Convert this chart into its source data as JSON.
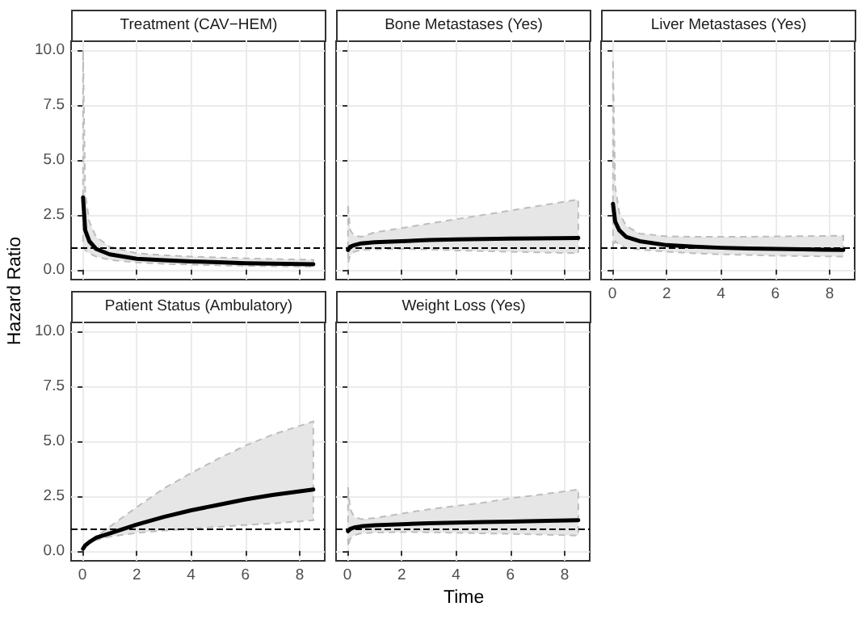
{
  "chart_data": [
    {
      "type": "line",
      "title": "Treatment (CAV−HEM)",
      "ylabel": "Hazard Ratio",
      "x": [
        0.02,
        0.1,
        0.25,
        0.5,
        1,
        2,
        3,
        4,
        5,
        6,
        7,
        8.5
      ],
      "series": [
        {
          "color": "#000000",
          "values": [
            3.3,
            1.8,
            1.3,
            0.95,
            0.7,
            0.5,
            0.43,
            0.38,
            0.34,
            0.3,
            0.28,
            0.25
          ],
          "lower": [
            1.1,
            0.9,
            0.75,
            0.6,
            0.45,
            0.33,
            0.27,
            0.23,
            0.2,
            0.18,
            0.16,
            0.14
          ],
          "upper": [
            10,
            3.5,
            2.2,
            1.5,
            1.05,
            0.75,
            0.66,
            0.6,
            0.56,
            0.52,
            0.49,
            0.45
          ]
        }
      ],
      "xlim": [
        -0.42,
        8.92
      ],
      "ylim": [
        -0.45,
        10.45
      ],
      "xticks": [
        0,
        2,
        4,
        6,
        8
      ],
      "yticks": [
        {
          "value": 0,
          "label": "0.0"
        },
        {
          "value": 2.5,
          "label": "2.5"
        },
        {
          "value": 5,
          "label": "5.0"
        },
        {
          "value": 7.5,
          "label": "7.5"
        },
        {
          "value": 10,
          "label": "10.0"
        }
      ],
      "ref_lines": [
        {
          "axis": "y",
          "value": 1,
          "color": "#000000",
          "line_style": "dashed"
        }
      ],
      "grid": true,
      "tick_labels": "y"
    },
    {
      "type": "line",
      "title": "Bone Metastases (Yes)",
      "x": [
        0.02,
        0.1,
        0.25,
        0.5,
        1,
        2,
        3,
        4,
        5,
        6,
        7,
        8.5
      ],
      "series": [
        {
          "color": "#000000",
          "values": [
            0.9,
            1.05,
            1.12,
            1.2,
            1.25,
            1.3,
            1.35,
            1.38,
            1.4,
            1.42,
            1.43,
            1.45
          ],
          "lower": [
            0.3,
            0.65,
            0.82,
            0.9,
            0.93,
            0.95,
            0.92,
            0.88,
            0.85,
            0.82,
            0.79,
            0.75
          ],
          "upper": [
            2.9,
            1.8,
            1.55,
            1.5,
            1.7,
            1.9,
            2.1,
            2.3,
            2.5,
            2.7,
            2.9,
            3.2
          ]
        }
      ],
      "xlim": [
        -0.42,
        8.92
      ],
      "ylim": [
        -0.45,
        10.45
      ],
      "xticks": [
        0,
        2,
        4,
        6,
        8
      ],
      "yticks": [
        0,
        2.5,
        5,
        7.5,
        10
      ],
      "ref_lines": [
        {
          "axis": "y",
          "value": 1,
          "color": "#000000",
          "line_style": "dashed"
        }
      ],
      "grid": true,
      "tick_labels": false
    },
    {
      "type": "line",
      "title": "Liver Metastases (Yes)",
      "x": [
        0.02,
        0.1,
        0.25,
        0.5,
        1,
        2,
        3,
        4,
        5,
        6,
        7,
        8.5
      ],
      "series": [
        {
          "color": "#000000",
          "values": [
            3.0,
            2.2,
            1.8,
            1.5,
            1.3,
            1.12,
            1.05,
            1.0,
            0.97,
            0.95,
            0.93,
            0.9
          ],
          "lower": [
            1.0,
            1.3,
            1.15,
            1.0,
            0.92,
            0.82,
            0.75,
            0.7,
            0.67,
            0.64,
            0.62,
            0.6
          ],
          "upper": [
            9.5,
            3.8,
            2.6,
            2.0,
            1.65,
            1.52,
            1.5,
            1.5,
            1.5,
            1.52,
            1.53,
            1.55
          ]
        }
      ],
      "xlim": [
        -0.42,
        8.92
      ],
      "ylim": [
        -0.45,
        10.45
      ],
      "xticks": [
        0,
        2,
        4,
        6,
        8
      ],
      "yticks": [
        0,
        2.5,
        5,
        7.5,
        10
      ],
      "ref_lines": [
        {
          "axis": "y",
          "value": 1,
          "color": "#000000",
          "line_style": "dashed"
        }
      ],
      "grid": true,
      "tick_labels": "x"
    },
    {
      "type": "line",
      "title": "Patient Status (Ambulatory)",
      "x": [
        0.02,
        0.1,
        0.25,
        0.5,
        1,
        2,
        3,
        4,
        5,
        6,
        7,
        8.5
      ],
      "series": [
        {
          "color": "#000000",
          "values": [
            0.1,
            0.25,
            0.4,
            0.6,
            0.8,
            1.2,
            1.55,
            1.85,
            2.1,
            2.35,
            2.55,
            2.8
          ],
          "lower": [
            0.05,
            0.2,
            0.35,
            0.5,
            0.65,
            0.82,
            0.93,
            1.02,
            1.1,
            1.18,
            1.25,
            1.4
          ],
          "upper": [
            0.15,
            0.3,
            0.45,
            0.65,
            1.1,
            2.0,
            2.85,
            3.55,
            4.2,
            4.8,
            5.3,
            5.9
          ]
        }
      ],
      "xlim": [
        -0.42,
        8.92
      ],
      "ylim": [
        -0.45,
        10.45
      ],
      "xticks": [
        0,
        2,
        4,
        6,
        8
      ],
      "yticks": [
        {
          "value": 0,
          "label": "0.0"
        },
        {
          "value": 2.5,
          "label": "2.5"
        },
        {
          "value": 5,
          "label": "5.0"
        },
        {
          "value": 7.5,
          "label": "7.5"
        },
        {
          "value": 10,
          "label": "10.0"
        }
      ],
      "ref_lines": [
        {
          "axis": "y",
          "value": 1,
          "color": "#000000",
          "line_style": "dashed"
        }
      ],
      "grid": true
    },
    {
      "type": "line",
      "title": "Weight Loss (Yes)",
      "xlabel": "Time",
      "x": [
        0.02,
        0.1,
        0.25,
        0.5,
        1,
        2,
        3,
        4,
        5,
        6,
        7,
        8.5
      ],
      "series": [
        {
          "color": "#000000",
          "values": [
            0.9,
            1.0,
            1.07,
            1.12,
            1.17,
            1.22,
            1.26,
            1.29,
            1.32,
            1.34,
            1.36,
            1.4
          ],
          "lower": [
            0.2,
            0.55,
            0.72,
            0.8,
            0.84,
            0.86,
            0.85,
            0.83,
            0.8,
            0.78,
            0.75,
            0.7
          ],
          "upper": [
            2.9,
            1.9,
            1.55,
            1.45,
            1.5,
            1.7,
            1.9,
            2.05,
            2.2,
            2.4,
            2.55,
            2.8
          ]
        }
      ],
      "xlim": [
        -0.42,
        8.92
      ],
      "ylim": [
        -0.45,
        10.45
      ],
      "xticks": [
        0,
        2,
        4,
        6,
        8
      ],
      "yticks": [
        0,
        2.5,
        5,
        7.5,
        10
      ],
      "ref_lines": [
        {
          "axis": "y",
          "value": 1,
          "color": "#000000",
          "line_style": "dashed"
        }
      ],
      "grid": true,
      "tick_labels": "x"
    }
  ]
}
